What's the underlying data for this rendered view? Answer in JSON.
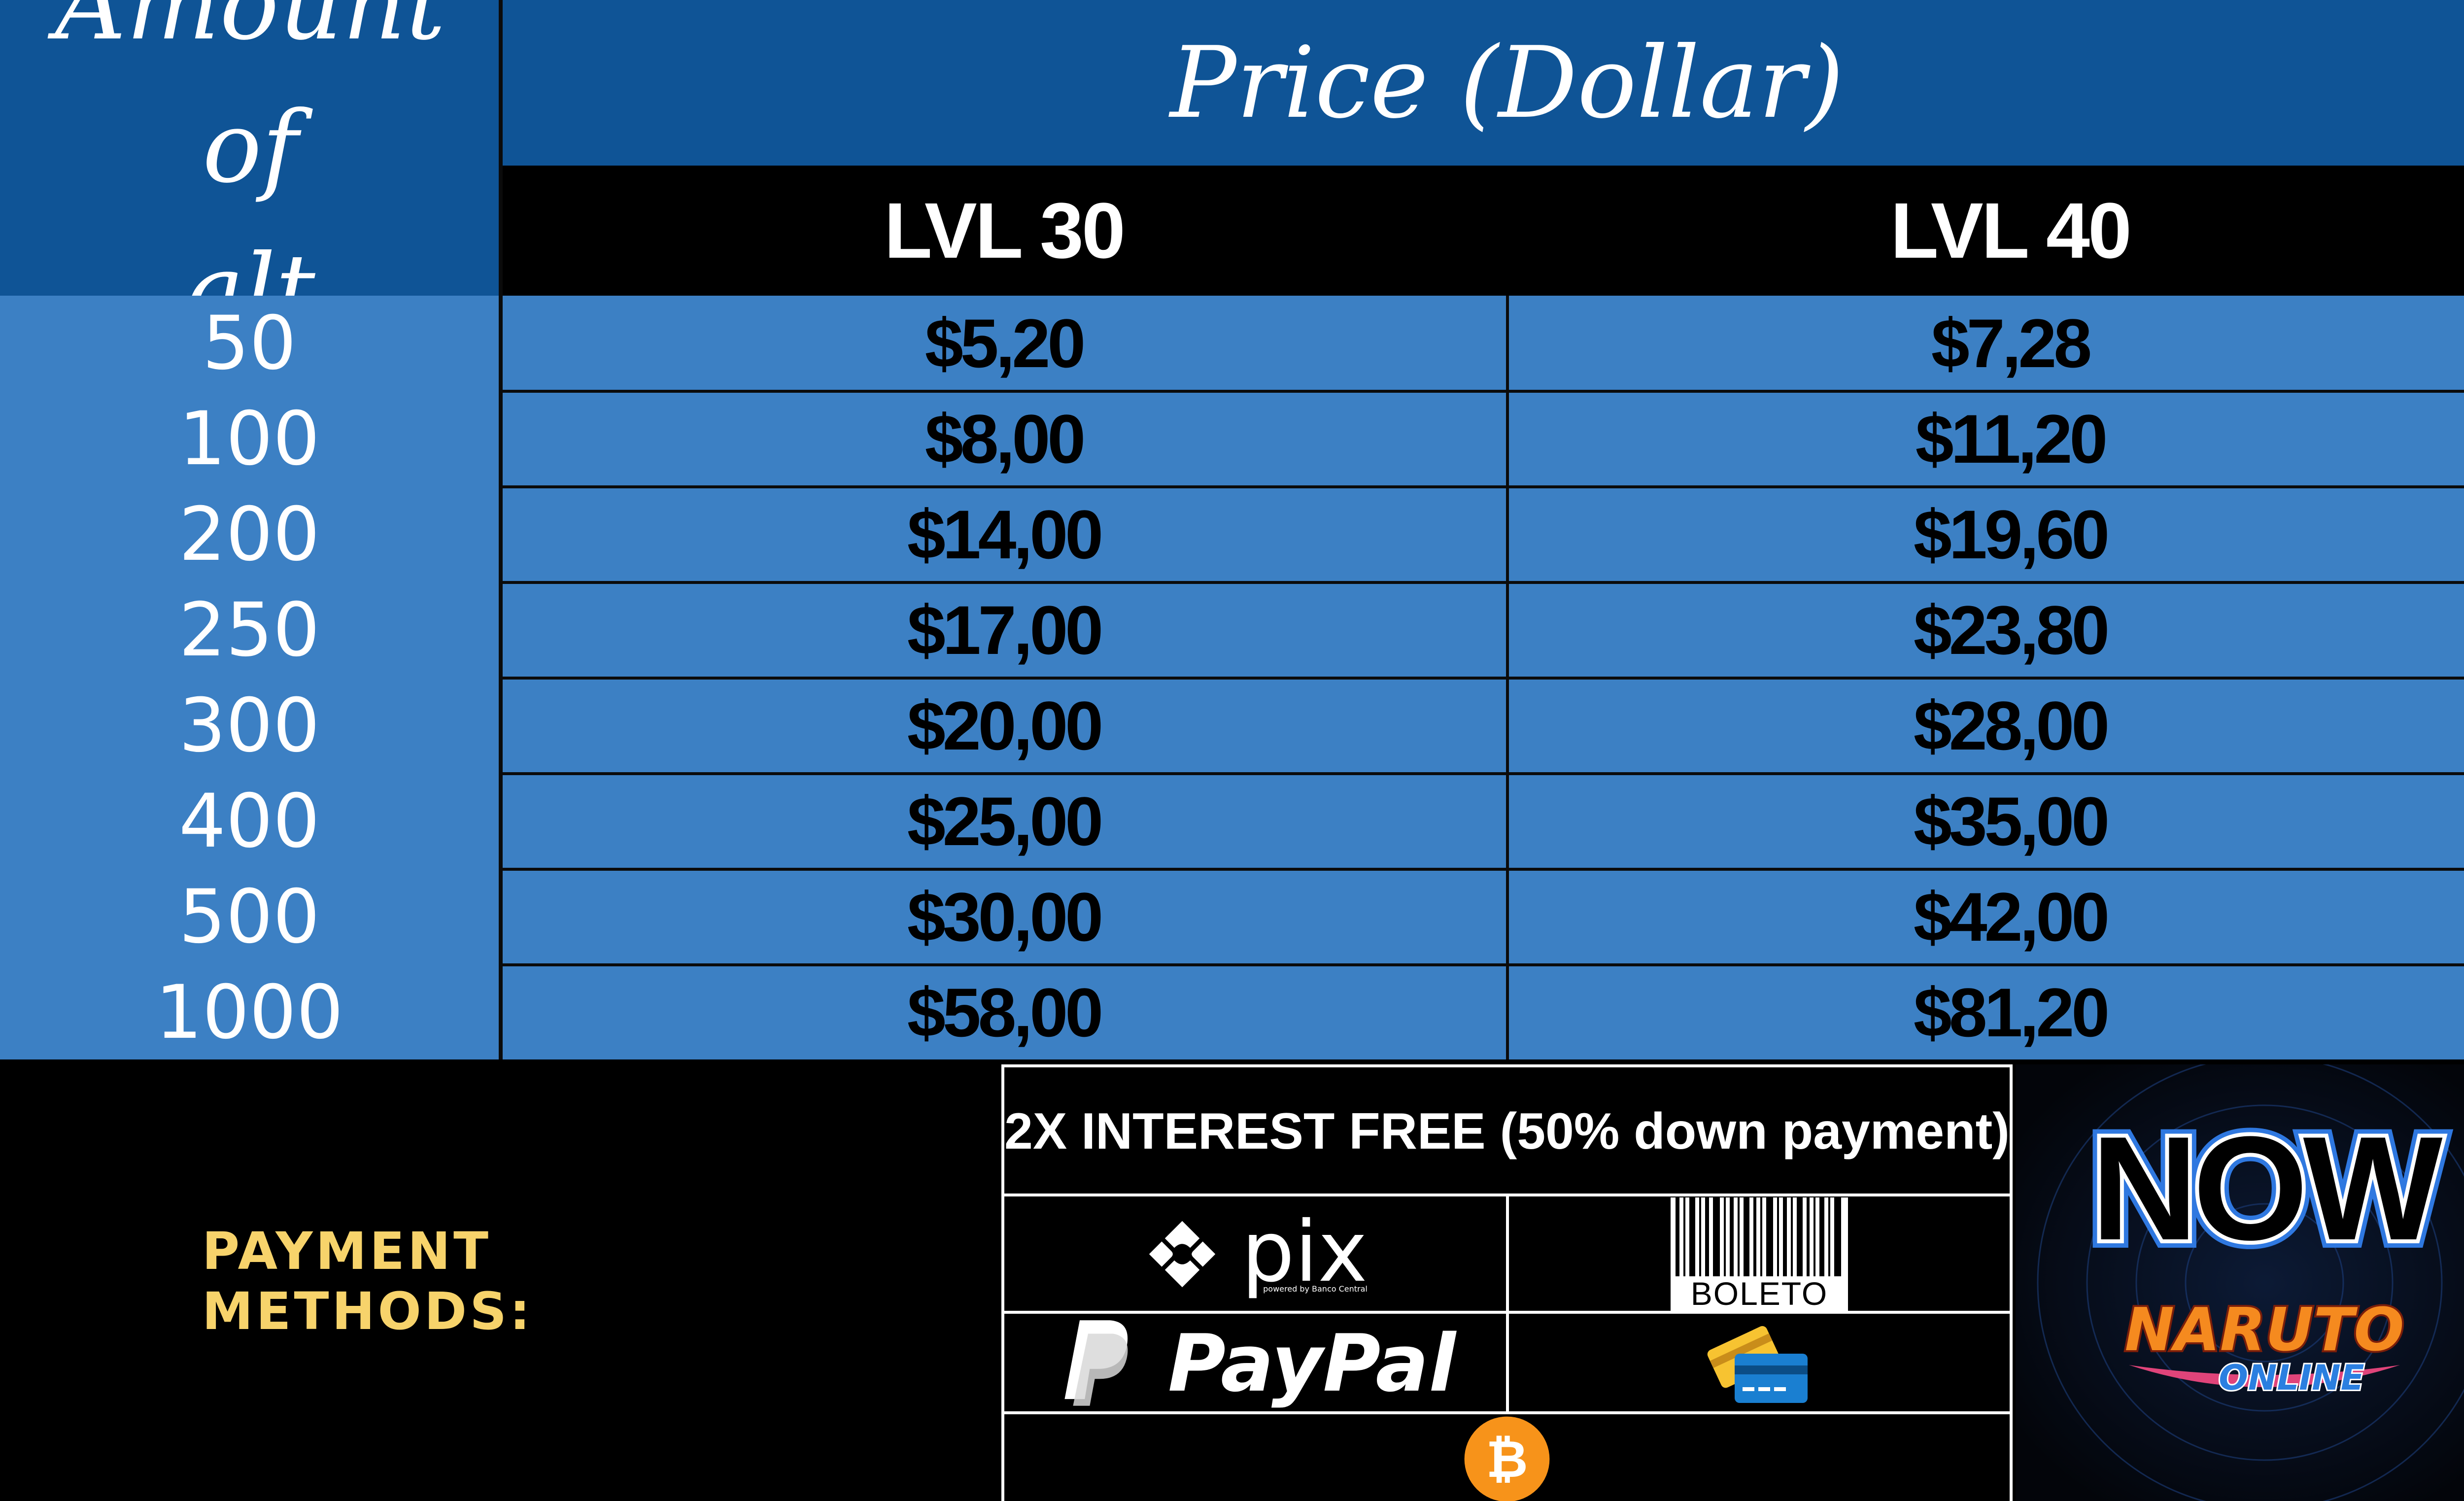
{
  "header": {
    "amount_line1": "Amount of",
    "amount_line2": "alt",
    "price_title": "Price (Dollar)",
    "level_1": "LVL 30",
    "level_2": "LVL 40"
  },
  "rows": [
    {
      "amount": "50",
      "lvl30": "$5,20",
      "lvl40": "$7,28"
    },
    {
      "amount": "100",
      "lvl30": "$8,00",
      "lvl40": "$11,20"
    },
    {
      "amount": "200",
      "lvl30": "$14,00",
      "lvl40": "$19,60"
    },
    {
      "amount": "250",
      "lvl30": "$17,00",
      "lvl40": "$23,80"
    },
    {
      "amount": "300",
      "lvl30": "$20,00",
      "lvl40": "$28,00"
    },
    {
      "amount": "400",
      "lvl30": "$25,00",
      "lvl40": "$35,00"
    },
    {
      "amount": "500",
      "lvl30": "$30,00",
      "lvl40": "$42,00"
    },
    {
      "amount": "1000",
      "lvl30": "$58,00",
      "lvl40": "$81,20"
    }
  ],
  "payment": {
    "label": "PAYMENT METHODS:",
    "installment": "2X INTEREST FREE (50% down payment)",
    "pix_word": "pix",
    "pix_sub": "powered by Banco Central",
    "boleto_word": "BOLETO",
    "paypal_word": "PayPal",
    "icons": [
      "pix-icon",
      "boleto-barcode-icon",
      "paypal-icon",
      "credit-card-icon",
      "bitcoin-icon"
    ]
  },
  "logo": {
    "main": "NOW",
    "sub1": "NARUTO",
    "sub2": "ONLINE"
  },
  "colors": {
    "header_blue": "#0f5496",
    "row_blue": "#3c80c4",
    "accent_yellow": "#f7d36b",
    "bitcoin_orange": "#f7931a"
  }
}
